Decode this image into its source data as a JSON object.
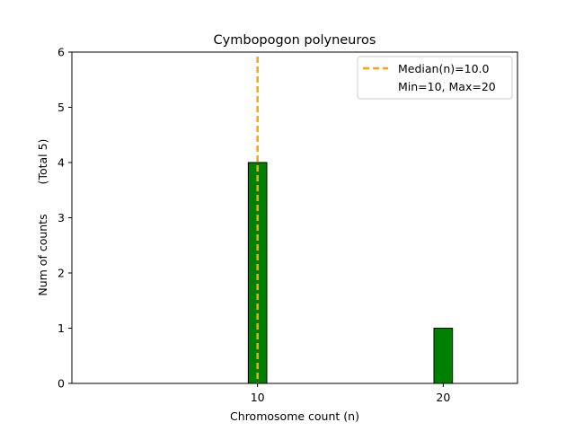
{
  "chart_data": {
    "type": "bar",
    "title": "Cymbopogon polyneuros",
    "xlabel": "Chromosome count (n)",
    "ylabel": "Num of counts",
    "ylabel_secondary": "(Total 5)",
    "xlim": [
      0,
      24
    ],
    "ylim": [
      0,
      6
    ],
    "x_ticks": [
      10,
      20
    ],
    "y_ticks": [
      0,
      1,
      2,
      3,
      4,
      5,
      6
    ],
    "grid": false,
    "bar_color": "#008000",
    "bar_edge_color": "#000000",
    "bars": [
      {
        "x": 10,
        "value": 4
      },
      {
        "x": 20,
        "value": 1
      }
    ],
    "median": {
      "value": 10.0,
      "color": "#ffa500",
      "label": "Median(n)=10.0"
    },
    "legend": {
      "placement": "top-right",
      "entries": [
        "Median(n)=10.0",
        "Min=10, Max=20"
      ]
    }
  }
}
